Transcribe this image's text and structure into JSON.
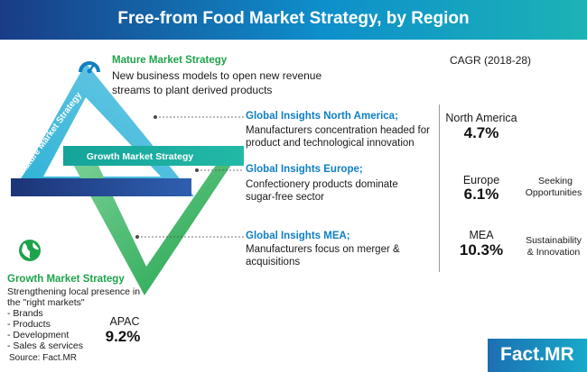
{
  "header": {
    "title": "Free-from Food Market Strategy, by Region"
  },
  "diagram": {
    "left_triangle_label": "Mature Market Strategy",
    "bar_label": "Growth Market Strategy"
  },
  "mature": {
    "heading": "Mature Market Strategy",
    "line1": "New business models to open new revenue",
    "line2": "streams to plant derived products"
  },
  "insights": [
    {
      "heading": "Global Insights North America;",
      "line1": "Manufacturers concentration headed for",
      "line2": "product and technological innovation"
    },
    {
      "heading": "Global Insights Europe;",
      "line1": "Confectionery products dominate",
      "line2": "sugar-free sector"
    },
    {
      "heading": "Global Insights MEA;",
      "line1": "Manufacturers focus on merger &",
      "line2": "acquisitions"
    }
  ],
  "cagr": {
    "title": "CAGR (2018-28)",
    "rows": [
      {
        "region": "North America",
        "value": "4.7%",
        "note1": "",
        "note2": ""
      },
      {
        "region": "Europe",
        "value": "6.1%",
        "note1": "Seeking",
        "note2": "Opportunities"
      },
      {
        "region": "MEA",
        "value": "10.3%",
        "note1": "Sustainability",
        "note2": "& Innovation"
      }
    ]
  },
  "growth": {
    "heading": "Growth Market Strategy",
    "lines": [
      "Strengthening local presence in",
      "the \"right markets\"",
      "- Brands",
      "- Products",
      "- Development",
      "- Sales & services"
    ],
    "region": "APAC",
    "value": "9.2%"
  },
  "footer": {
    "source": "Source: Fact.MR",
    "logo": "Fact.MR"
  },
  "colors": {
    "navy": "#1b2f6e",
    "blue": "#0e8fcb",
    "green": "#1ea34a",
    "teal": "#14b5a6"
  },
  "icons": {
    "gauge": "speedometer-icon",
    "globe": "globe-icon"
  }
}
